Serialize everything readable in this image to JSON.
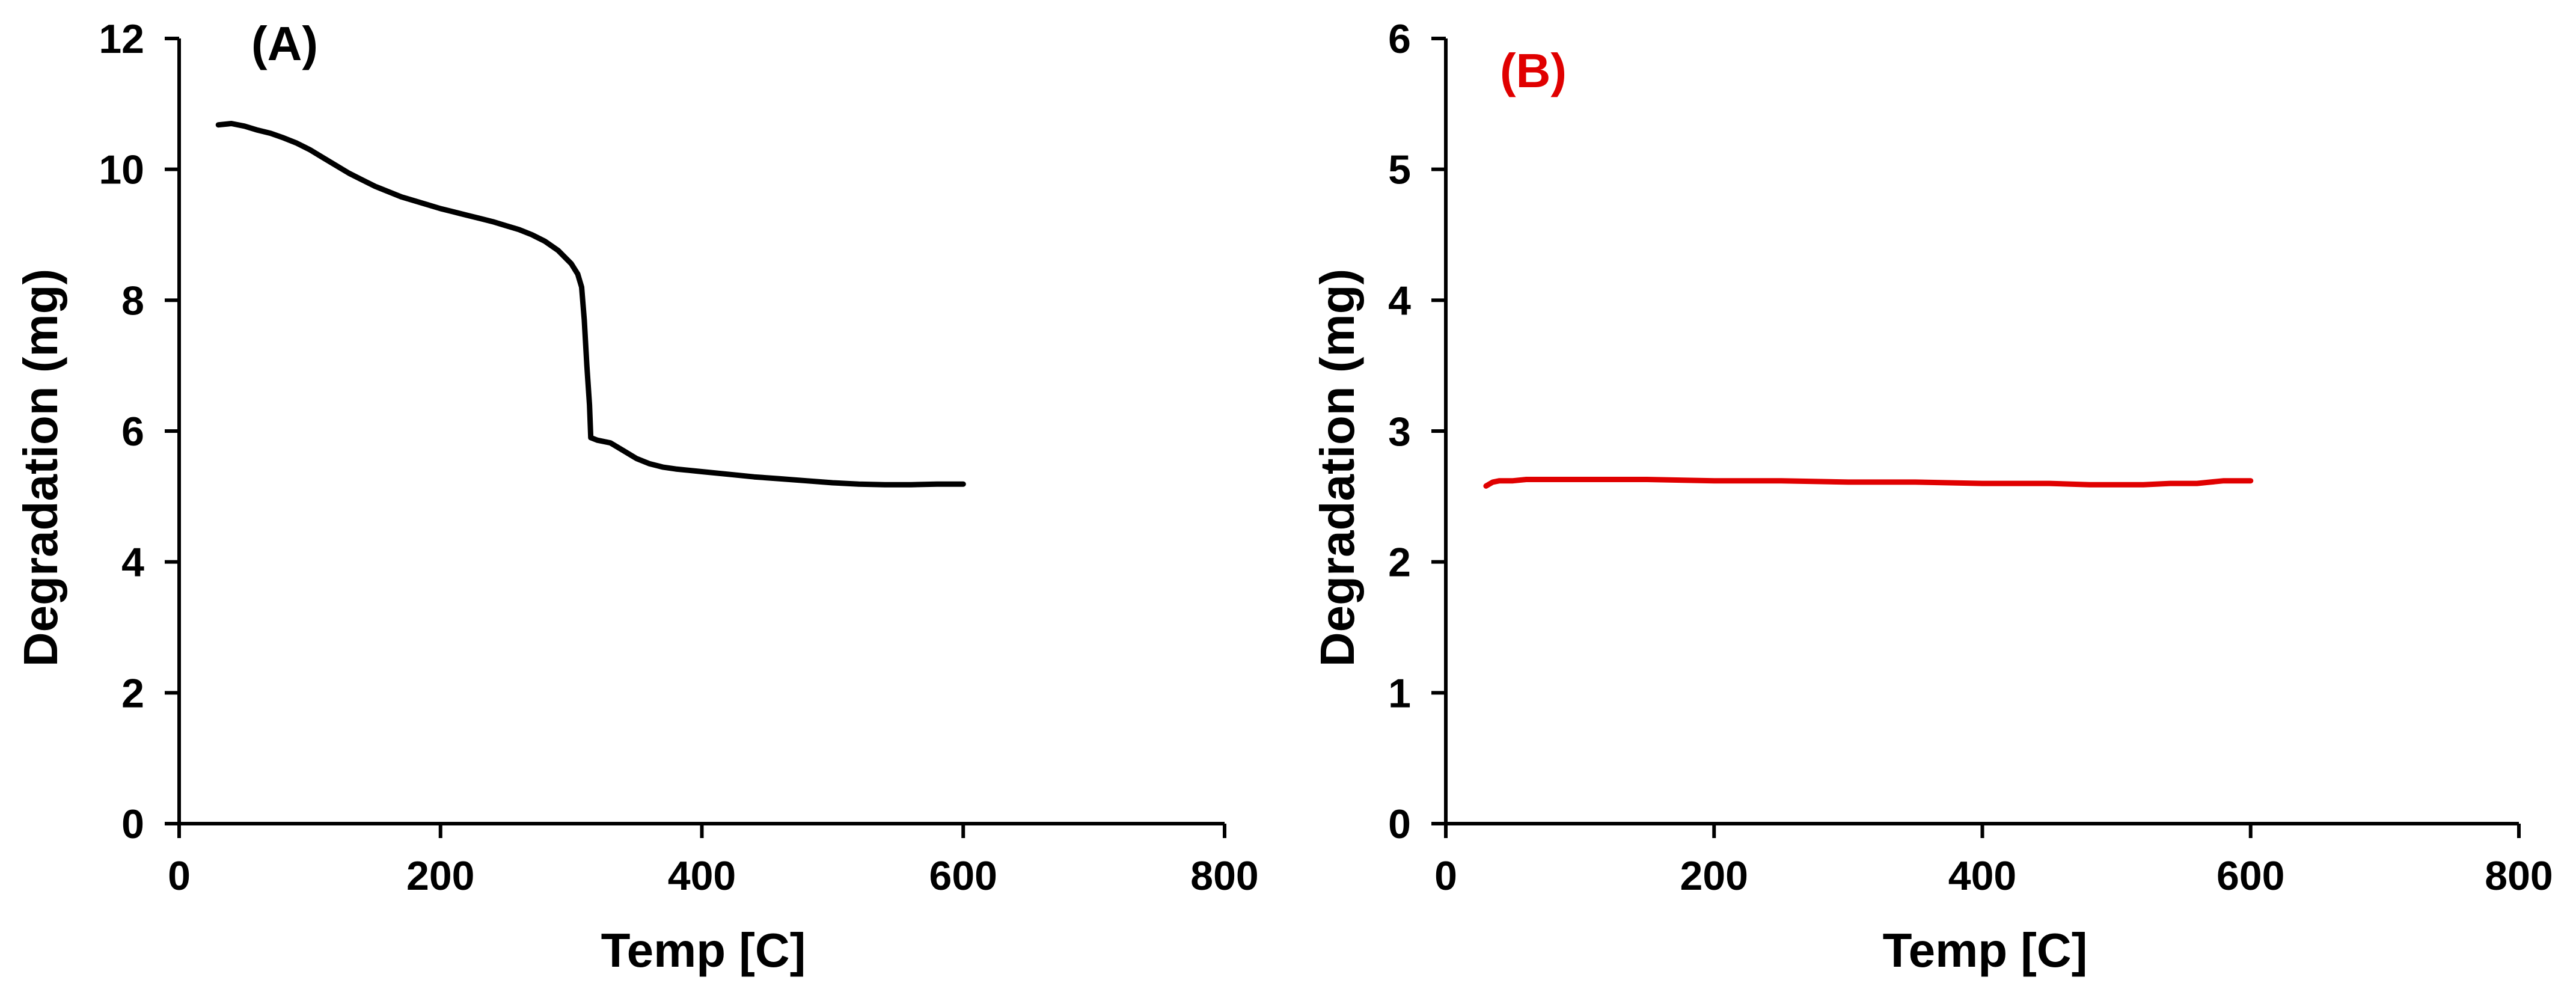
{
  "chart_data": [
    {
      "type": "line",
      "panel_label": "(A)",
      "panel_label_color": "#000000",
      "xlabel": "Temp [C]",
      "ylabel": "Degradation (mg)",
      "xlim": [
        0,
        800
      ],
      "ylim": [
        0,
        12
      ],
      "xticks": [
        0,
        200,
        400,
        600,
        800
      ],
      "yticks": [
        0,
        2,
        4,
        6,
        8,
        10,
        12
      ],
      "grid": false,
      "series": [
        {
          "color": "#000000",
          "points": [
            [
              30,
              10.68
            ],
            [
              40,
              10.7
            ],
            [
              50,
              10.66
            ],
            [
              60,
              10.6
            ],
            [
              70,
              10.55
            ],
            [
              80,
              10.48
            ],
            [
              90,
              10.4
            ],
            [
              100,
              10.3
            ],
            [
              110,
              10.18
            ],
            [
              120,
              10.06
            ],
            [
              130,
              9.94
            ],
            [
              140,
              9.84
            ],
            [
              150,
              9.74
            ],
            [
              160,
              9.66
            ],
            [
              170,
              9.58
            ],
            [
              180,
              9.52
            ],
            [
              190,
              9.46
            ],
            [
              200,
              9.4
            ],
            [
              210,
              9.35
            ],
            [
              220,
              9.3
            ],
            [
              230,
              9.25
            ],
            [
              240,
              9.2
            ],
            [
              250,
              9.14
            ],
            [
              260,
              9.08
            ],
            [
              270,
              9.0
            ],
            [
              280,
              8.9
            ],
            [
              290,
              8.76
            ],
            [
              300,
              8.56
            ],
            [
              305,
              8.4
            ],
            [
              308,
              8.2
            ],
            [
              310,
              7.7
            ],
            [
              312,
              7.0
            ],
            [
              314,
              6.4
            ],
            [
              315,
              5.9
            ],
            [
              320,
              5.86
            ],
            [
              330,
              5.82
            ],
            [
              340,
              5.7
            ],
            [
              350,
              5.58
            ],
            [
              360,
              5.5
            ],
            [
              370,
              5.45
            ],
            [
              380,
              5.42
            ],
            [
              400,
              5.38
            ],
            [
              420,
              5.34
            ],
            [
              440,
              5.3
            ],
            [
              460,
              5.27
            ],
            [
              480,
              5.24
            ],
            [
              500,
              5.21
            ],
            [
              520,
              5.19
            ],
            [
              540,
              5.18
            ],
            [
              560,
              5.18
            ],
            [
              580,
              5.19
            ],
            [
              600,
              5.19
            ]
          ]
        }
      ]
    },
    {
      "type": "line",
      "panel_label": "(B)",
      "panel_label_color": "#e00000",
      "xlabel": "Temp [C]",
      "ylabel": "Degradation (mg)",
      "xlim": [
        0,
        800
      ],
      "ylim": [
        0,
        6
      ],
      "xticks": [
        0,
        200,
        400,
        600,
        800
      ],
      "yticks": [
        0,
        1,
        2,
        3,
        4,
        5,
        6
      ],
      "grid": false,
      "series": [
        {
          "color": "#e00000",
          "points": [
            [
              30,
              2.58
            ],
            [
              35,
              2.61
            ],
            [
              40,
              2.62
            ],
            [
              50,
              2.62
            ],
            [
              60,
              2.63
            ],
            [
              100,
              2.63
            ],
            [
              150,
              2.63
            ],
            [
              200,
              2.62
            ],
            [
              250,
              2.62
            ],
            [
              300,
              2.61
            ],
            [
              350,
              2.61
            ],
            [
              400,
              2.6
            ],
            [
              450,
              2.6
            ],
            [
              480,
              2.59
            ],
            [
              500,
              2.59
            ],
            [
              520,
              2.59
            ],
            [
              540,
              2.6
            ],
            [
              560,
              2.6
            ],
            [
              570,
              2.61
            ],
            [
              580,
              2.62
            ],
            [
              600,
              2.62
            ]
          ]
        }
      ]
    }
  ]
}
